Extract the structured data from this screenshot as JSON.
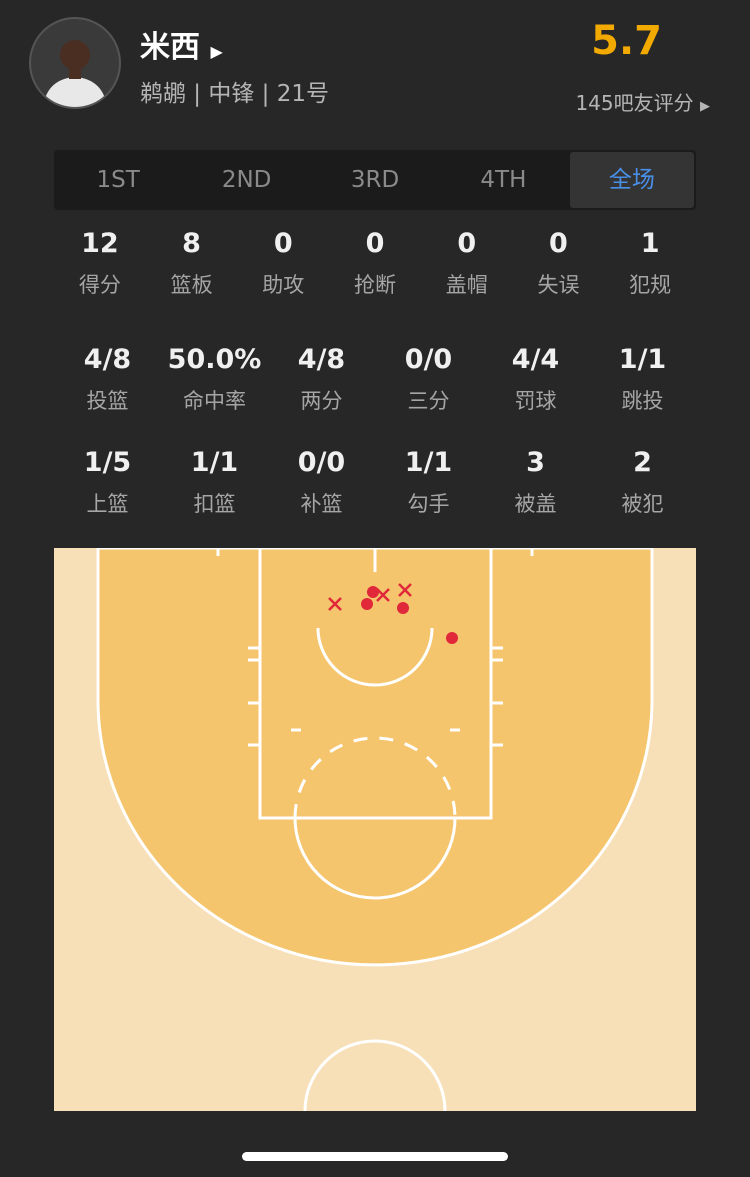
{
  "player": {
    "name": "米西",
    "info": "鹈鹕 | 中锋 | 21号",
    "rating": 5.7,
    "rating_count": "145吧友评分"
  },
  "tabs": [
    "1ST",
    "2ND",
    "3RD",
    "4TH",
    "全场"
  ],
  "active_tab": 4,
  "stat_rows": [
    [
      {
        "value": 12,
        "label": "得分"
      },
      {
        "value": 8,
        "label": "篮板"
      },
      {
        "value": 0,
        "label": "助攻"
      },
      {
        "value": 0,
        "label": "抢断"
      },
      {
        "value": 0,
        "label": "盖帽"
      },
      {
        "value": 0,
        "label": "失误"
      },
      {
        "value": 1,
        "label": "犯规"
      }
    ],
    [
      {
        "value": "4/8",
        "label": "投篮"
      },
      {
        "value": "50.0%",
        "label": "命中率"
      },
      {
        "value": "4/8",
        "label": "两分"
      },
      {
        "value": "0/0",
        "label": "三分"
      },
      {
        "value": "4/4",
        "label": "罚球"
      },
      {
        "value": "1/1",
        "label": "跳投"
      }
    ],
    [
      {
        "value": "1/5",
        "label": "上篮"
      },
      {
        "value": "1/1",
        "label": "扣篮"
      },
      {
        "value": "0/0",
        "label": "补篮"
      },
      {
        "value": "1/1",
        "label": "勾手"
      },
      {
        "value": 3,
        "label": "被盖"
      },
      {
        "value": 2,
        "label": "被犯"
      }
    ]
  ]
}
